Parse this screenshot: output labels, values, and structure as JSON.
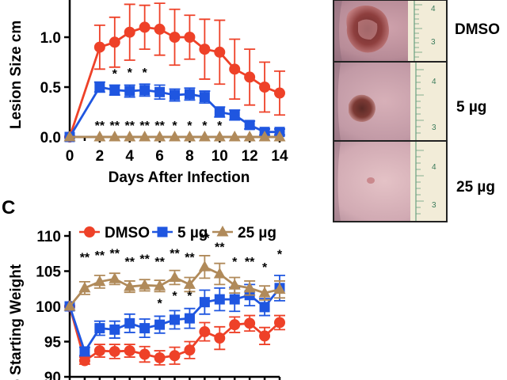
{
  "colors": {
    "DMSO": "#ee4128",
    "5 µg": "#1f56e0",
    "25 µg": "#b08a5a"
  },
  "chart_data": [
    {
      "type": "line",
      "title": "",
      "xlabel": "Days After Infection",
      "ylabel": "Lesion Size cm",
      "xlim": [
        0,
        14
      ],
      "ylim": [
        0,
        1.4
      ],
      "xticks": [
        "0",
        "2",
        "4",
        "6",
        "8",
        "10",
        "12",
        "14"
      ],
      "yticks": [
        "0.0",
        "0.5",
        "1.0"
      ],
      "series": [
        {
          "key": "DMSO",
          "marker": "circle",
          "x": [
            0,
            2,
            3,
            4,
            5,
            6,
            7,
            8,
            9,
            10,
            11,
            12,
            13,
            14
          ],
          "y": [
            0.0,
            0.9,
            0.95,
            1.05,
            1.1,
            1.08,
            1.0,
            1.0,
            0.88,
            0.85,
            0.68,
            0.6,
            0.5,
            0.44
          ],
          "err": [
            0.0,
            0.22,
            0.25,
            0.28,
            0.22,
            0.26,
            0.28,
            0.22,
            0.3,
            0.32,
            0.3,
            0.28,
            0.25,
            0.22
          ]
        },
        {
          "key": "5 µg",
          "marker": "square",
          "x": [
            0,
            2,
            3,
            4,
            5,
            6,
            7,
            8,
            9,
            10,
            11,
            12,
            13,
            14
          ],
          "y": [
            0.0,
            0.5,
            0.47,
            0.46,
            0.47,
            0.45,
            0.42,
            0.43,
            0.4,
            0.25,
            0.22,
            0.12,
            0.05,
            0.05
          ],
          "err": [
            0.0,
            0.05,
            0.05,
            0.06,
            0.06,
            0.07,
            0.06,
            0.06,
            0.06,
            0.05,
            0.05,
            0.04,
            0.03,
            0.03
          ]
        },
        {
          "key": "25 µg",
          "marker": "triangle",
          "x": [
            0,
            2,
            3,
            4,
            5,
            6,
            7,
            8,
            9,
            10,
            11,
            12,
            13,
            14
          ],
          "y": [
            0,
            0,
            0,
            0,
            0,
            0,
            0,
            0,
            0,
            0,
            0,
            0,
            0,
            0
          ],
          "err": [
            0,
            0,
            0,
            0,
            0,
            0,
            0,
            0,
            0,
            0,
            0,
            0,
            0,
            0
          ]
        }
      ],
      "annotations": [
        {
          "x": 3,
          "y": 0.64,
          "text": "*"
        },
        {
          "x": 4,
          "y": 0.65,
          "text": "*"
        },
        {
          "x": 5,
          "y": 0.65,
          "text": "*"
        },
        {
          "x": 2,
          "y": 0.12,
          "text": "**"
        },
        {
          "x": 3,
          "y": 0.12,
          "text": "**"
        },
        {
          "x": 4,
          "y": 0.12,
          "text": "**"
        },
        {
          "x": 5,
          "y": 0.12,
          "text": "**"
        },
        {
          "x": 6,
          "y": 0.12,
          "text": "**"
        },
        {
          "x": 7,
          "y": 0.12,
          "text": "*"
        },
        {
          "x": 8,
          "y": 0.12,
          "text": "*"
        },
        {
          "x": 9,
          "y": 0.12,
          "text": "*"
        },
        {
          "x": 10,
          "y": 0.12,
          "text": "*"
        }
      ]
    },
    {
      "type": "line",
      "panel_label": "C",
      "title": "",
      "xlabel": "",
      "ylabel": "% Starting Weight",
      "xlim": [
        0,
        14
      ],
      "ylim": [
        90,
        110
      ],
      "yticks": [
        "90",
        "95",
        "100",
        "105",
        "110"
      ],
      "legend": {
        "placement": "top",
        "entries": [
          "DMSO",
          "5 µg",
          "25 µg"
        ]
      },
      "series": [
        {
          "key": "DMSO",
          "marker": "circle",
          "x": [
            0,
            1,
            2,
            3,
            4,
            5,
            6,
            7,
            8,
            9,
            10,
            11,
            12,
            13,
            14
          ],
          "y": [
            100,
            92.3,
            93.7,
            93.6,
            93.7,
            93.2,
            92.7,
            93.0,
            93.8,
            96.4,
            95.5,
            97.4,
            97.6,
            95.8,
            97.7
          ],
          "err": [
            0,
            0.5,
            0.9,
            1.0,
            0.9,
            1.1,
            1.0,
            1.2,
            1.2,
            1.3,
            1.6,
            1.1,
            1.1,
            1.2,
            1.0
          ]
        },
        {
          "key": "5 µg",
          "marker": "square",
          "x": [
            0,
            1,
            2,
            3,
            4,
            5,
            6,
            7,
            8,
            9,
            10,
            11,
            12,
            13,
            14
          ],
          "y": [
            100,
            93.6,
            96.9,
            96.7,
            97.6,
            96.9,
            97.4,
            98.1,
            98.3,
            100.6,
            101.0,
            101.0,
            101.6,
            99.9,
            102.6
          ],
          "err": [
            0,
            0.6,
            1.0,
            1.2,
            1.3,
            1.3,
            1.2,
            1.3,
            1.4,
            1.7,
            1.6,
            1.7,
            1.5,
            1.2,
            1.8
          ]
        },
        {
          "key": "25 µg",
          "marker": "triangle",
          "x": [
            0,
            1,
            2,
            3,
            4,
            5,
            6,
            7,
            8,
            9,
            10,
            11,
            12,
            13,
            14
          ],
          "y": [
            100,
            102.6,
            103.5,
            103.9,
            102.8,
            103.0,
            102.9,
            104.1,
            103.1,
            105.6,
            104.6,
            103.0,
            102.6,
            101.9,
            102.4
          ],
          "err": [
            0,
            0.9,
            0.9,
            0.8,
            0.8,
            0.8,
            0.8,
            1.0,
            1.0,
            1.6,
            1.5,
            1.1,
            1.0,
            1.0,
            1.2
          ]
        }
      ],
      "annotations": [
        {
          "x": 1,
          "y": 107.0,
          "text": "**"
        },
        {
          "x": 2,
          "y": 107.3,
          "text": "**"
        },
        {
          "x": 3,
          "y": 107.6,
          "text": "**"
        },
        {
          "x": 4,
          "y": 106.4,
          "text": "**"
        },
        {
          "x": 5,
          "y": 106.8,
          "text": "**"
        },
        {
          "x": 6,
          "y": 106.4,
          "text": "**"
        },
        {
          "x": 7,
          "y": 107.6,
          "text": "**"
        },
        {
          "x": 8,
          "y": 107.0,
          "text": "**"
        },
        {
          "x": 9,
          "y": 109.8,
          "text": "**"
        },
        {
          "x": 10,
          "y": 108.5,
          "text": "**"
        },
        {
          "x": 11,
          "y": 106.4,
          "text": "*"
        },
        {
          "x": 12,
          "y": 106.4,
          "text": "**"
        },
        {
          "x": 13,
          "y": 105.6,
          "text": "*"
        },
        {
          "x": 14,
          "y": 107.5,
          "text": "*"
        },
        {
          "x": 6,
          "y": 100.5,
          "text": "*"
        },
        {
          "x": 7,
          "y": 101.6,
          "text": "*"
        },
        {
          "x": 8,
          "y": 101.6,
          "text": "*"
        }
      ]
    }
  ],
  "photos": {
    "labels": [
      "DMSO",
      "5 µg",
      "25 µg"
    ]
  }
}
